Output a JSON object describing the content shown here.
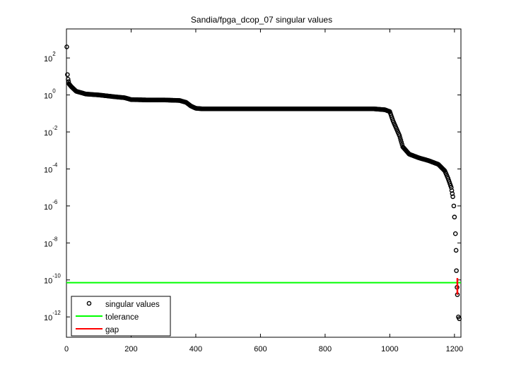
{
  "chart_data": {
    "type": "scatter",
    "title": "Sandia/fpga_dcop_07 singular values",
    "xlabel": "",
    "ylabel": "",
    "xlim": [
      0,
      1220
    ],
    "ylim_log10": [
      -13.1,
      3.57
    ],
    "yscale": "log",
    "x_ticks": [
      0,
      200,
      400,
      600,
      800,
      1000,
      1200
    ],
    "x_tick_labels": [
      "0",
      "200",
      "400",
      "600",
      "800",
      "1000",
      "1200"
    ],
    "y_ticks_log10": [
      2,
      0,
      -2,
      -4,
      -6,
      -8,
      -10,
      -12
    ],
    "y_tick_labels": [
      {
        "base": "10",
        "exp": "2"
      },
      {
        "base": "10",
        "exp": "0"
      },
      {
        "base": "10",
        "exp": "-2"
      },
      {
        "base": "10",
        "exp": "-4"
      },
      {
        "base": "10",
        "exp": "-6"
      },
      {
        "base": "10",
        "exp": "-8"
      },
      {
        "base": "10",
        "exp": "-10"
      },
      {
        "base": "10",
        "exp": "-12"
      }
    ],
    "grid": false,
    "legend_position": "lower left",
    "legend": [
      {
        "label": "singular values",
        "marker": "circle",
        "color": "#000000"
      },
      {
        "label": "tolerance",
        "style": "line",
        "color": "#00ff00"
      },
      {
        "label": "gap",
        "style": "line",
        "color": "#ff0000"
      }
    ],
    "series": [
      {
        "name": "singular values",
        "points_log10": [
          [
            1,
            2.6
          ],
          [
            3,
            1.1
          ],
          [
            5,
            0.85
          ],
          [
            8,
            0.6
          ],
          [
            15,
            0.45
          ],
          [
            30,
            0.2
          ],
          [
            60,
            0.05
          ],
          [
            100,
            0.0
          ],
          [
            150,
            -0.1
          ],
          [
            180,
            -0.15
          ],
          [
            200,
            -0.25
          ],
          [
            250,
            -0.27
          ],
          [
            300,
            -0.27
          ],
          [
            350,
            -0.3
          ],
          [
            370,
            -0.4
          ],
          [
            385,
            -0.6
          ],
          [
            400,
            -0.72
          ],
          [
            420,
            -0.75
          ],
          [
            600,
            -0.75
          ],
          [
            800,
            -0.75
          ],
          [
            950,
            -0.75
          ],
          [
            985,
            -0.8
          ],
          [
            1000,
            -0.9
          ],
          [
            1010,
            -1.4
          ],
          [
            1020,
            -1.8
          ],
          [
            1030,
            -2.2
          ],
          [
            1040,
            -2.8
          ],
          [
            1060,
            -3.2
          ],
          [
            1090,
            -3.4
          ],
          [
            1120,
            -3.55
          ],
          [
            1150,
            -3.75
          ],
          [
            1170,
            -4.1
          ],
          [
            1180,
            -4.5
          ],
          [
            1190,
            -5.0
          ],
          [
            1195,
            -5.5
          ],
          [
            1198,
            -6.0
          ],
          [
            1200,
            -6.6
          ],
          [
            1203,
            -7.5
          ],
          [
            1205,
            -8.4
          ],
          [
            1206,
            -9.5
          ],
          [
            1208,
            -10.4
          ],
          [
            1209,
            -10.8
          ],
          [
            1212,
            -12.0
          ],
          [
            1215,
            -12.1
          ]
        ]
      },
      {
        "name": "tolerance",
        "value_log10": -10.15
      },
      {
        "name": "gap",
        "x": 1209,
        "from_log10": -9.9,
        "to_log10": -10.8
      }
    ]
  }
}
